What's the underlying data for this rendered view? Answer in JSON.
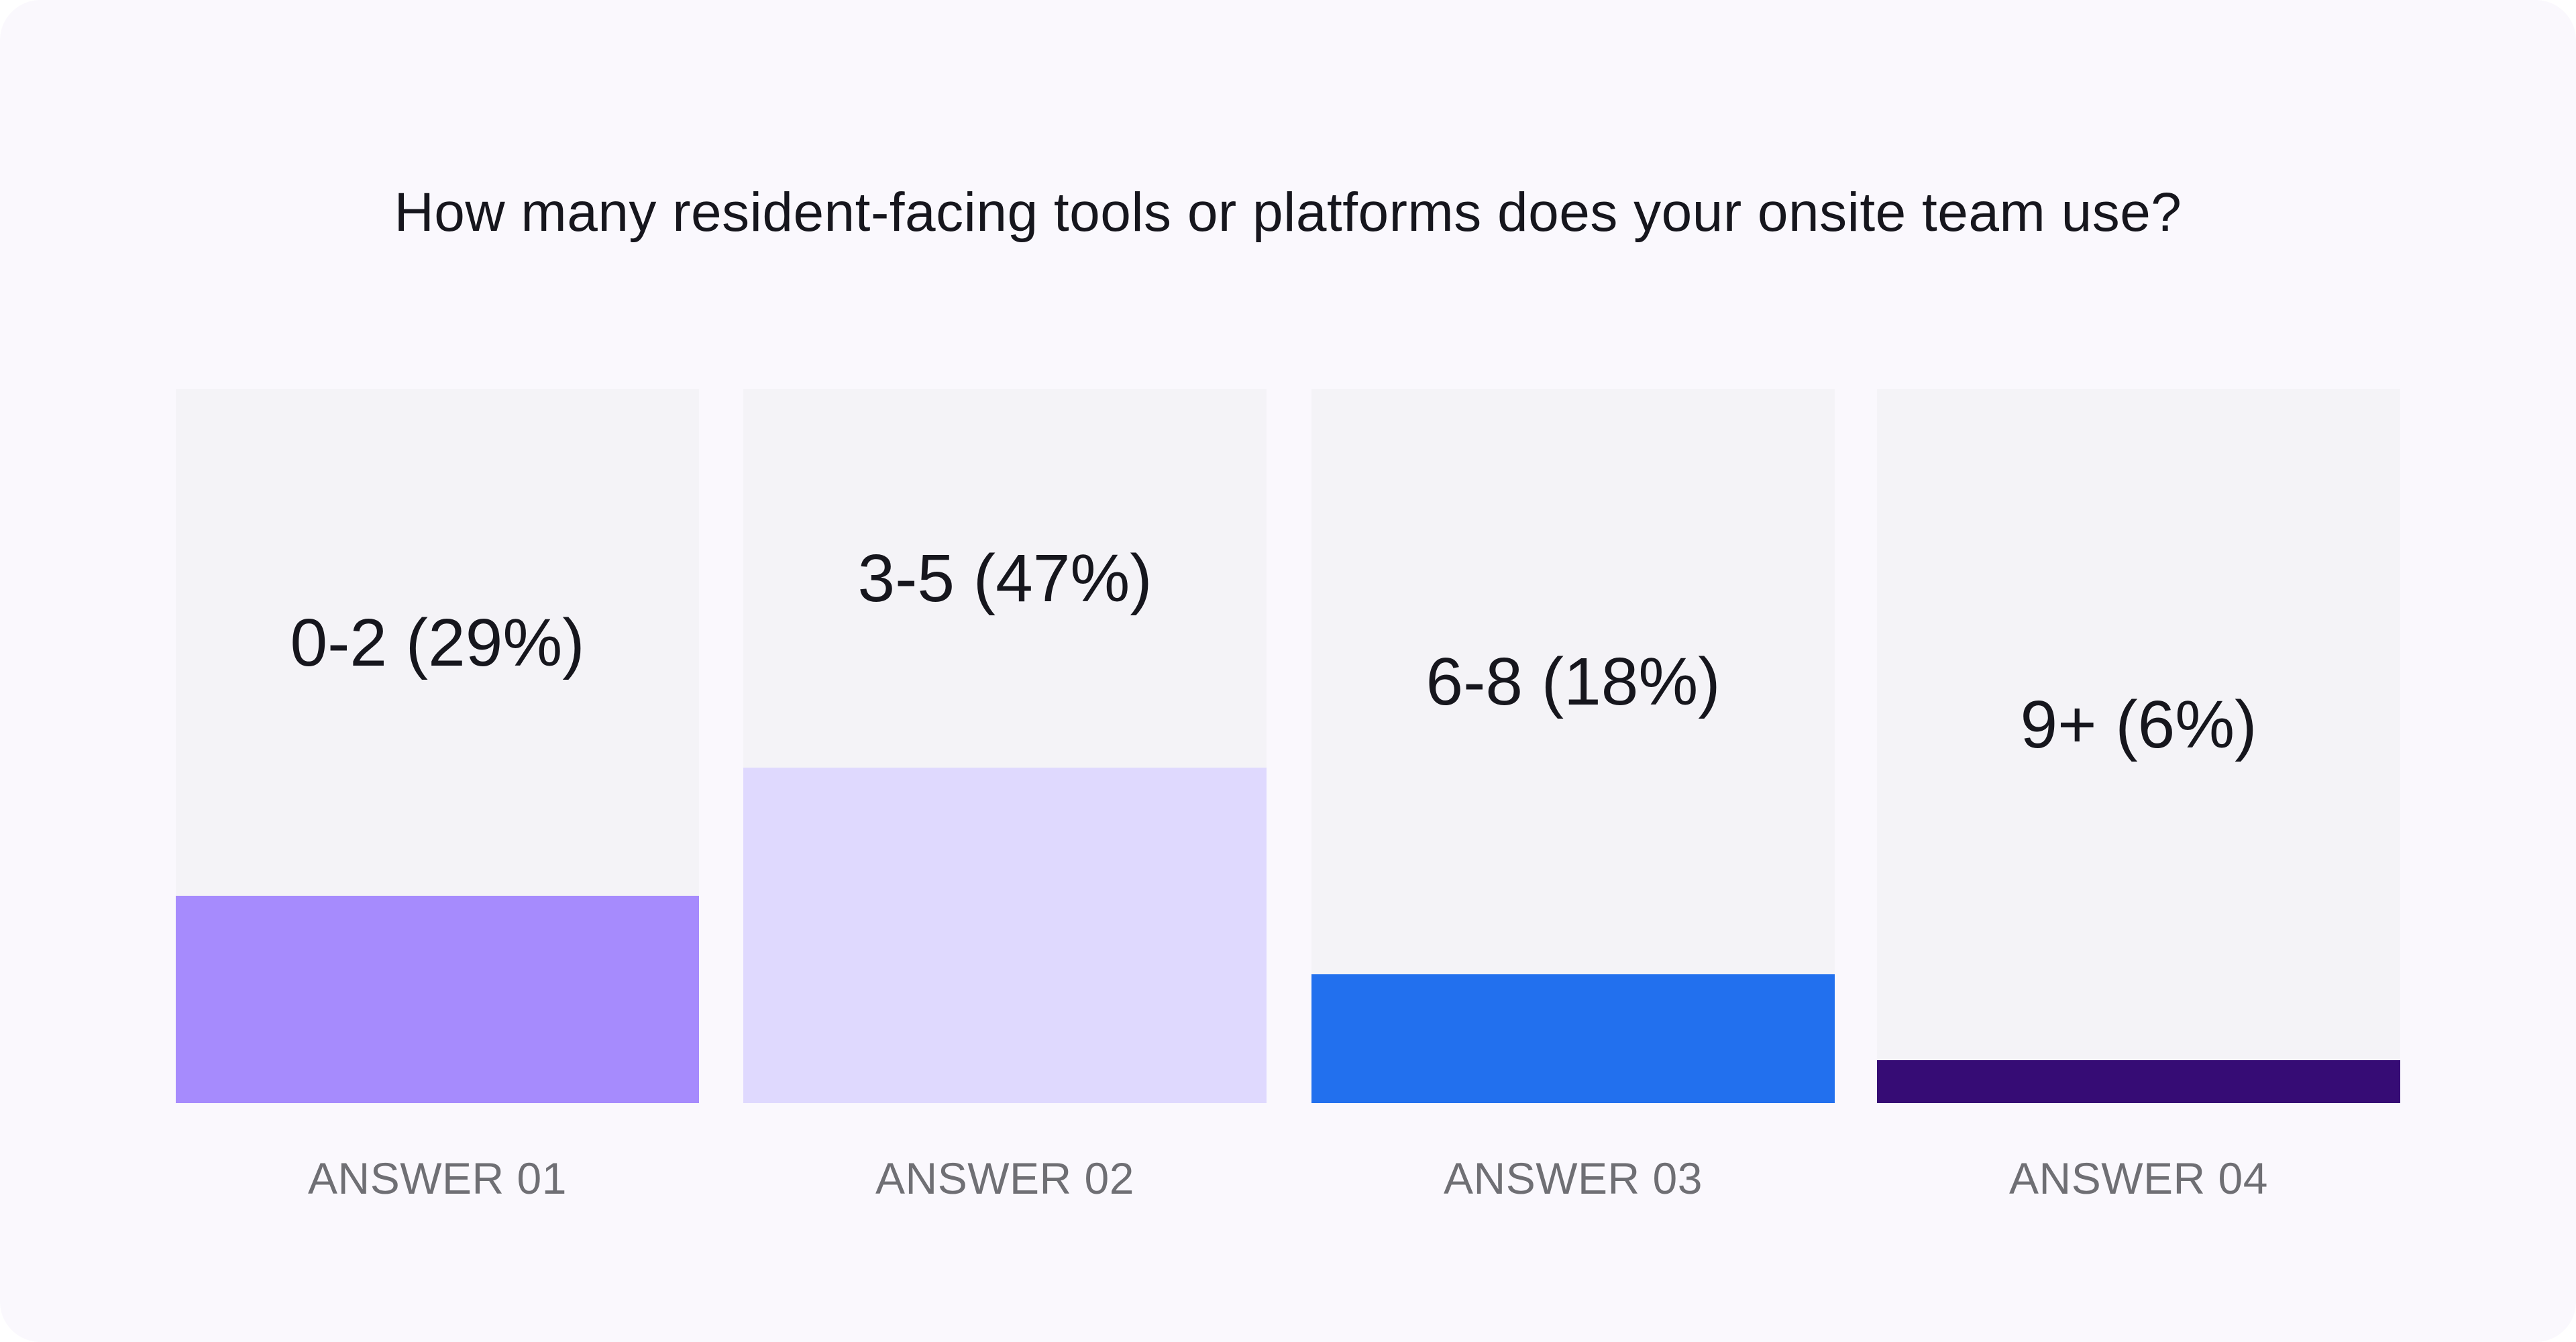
{
  "chart_data": {
    "type": "bar",
    "title": "How many resident-facing tools or platforms does your onsite team use?",
    "categories": [
      "ANSWER 01",
      "ANSWER 02",
      "ANSWER 03",
      "ANSWER 04"
    ],
    "ylim": [
      0,
      100
    ],
    "bars": [
      {
        "category": "ANSWER 01",
        "label": "0-2 (29%)",
        "value": 29,
        "color": "#a68bfd"
      },
      {
        "category": "ANSWER 02",
        "label": "3-5 (47%)",
        "value": 47,
        "color": "#dfd9fe"
      },
      {
        "category": "ANSWER 03",
        "label": "6-8 (18%)",
        "value": 18,
        "color": "#2270ee"
      },
      {
        "category": "ANSWER 04",
        "label": "9+ (6%)",
        "value": 6,
        "color": "#360c75"
      }
    ]
  }
}
